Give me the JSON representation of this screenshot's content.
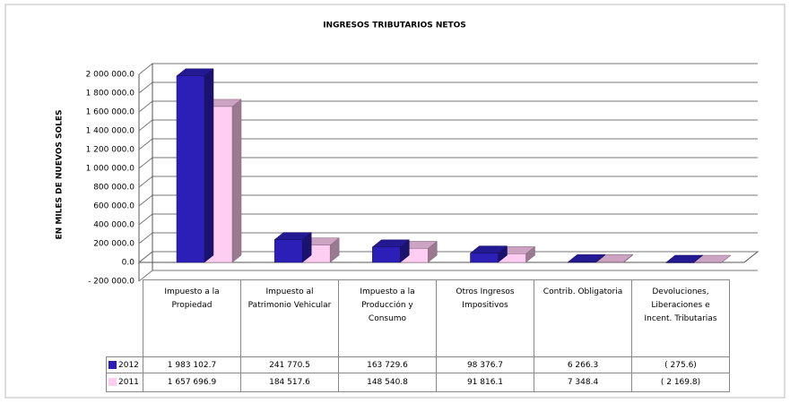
{
  "chart_data": {
    "type": "bar3d",
    "title": "INGRESOS  TRIBUTARIOS  NETOS",
    "y_label": "EN MILES DE NUEVOS SOLES",
    "categories": [
      "Impuesto a la Propiedad",
      "Impuesto al Patrimonio Vehicular",
      "Impuesto a la Producción y Consumo",
      "Otros Ingresos Impositivos",
      "Contrib. Obligatoria",
      "Devoluciones, Liberaciones e Incent. Tributarias"
    ],
    "series": [
      {
        "name": "2012",
        "color": "#2b1fb8",
        "values": [
          1983102.7,
          241770.5,
          163729.6,
          98376.7,
          6266.3,
          -275.6
        ],
        "value_labels": [
          "1 983 102.7",
          "241 770.5",
          "163 729.6",
          "98 376.7",
          "6 266.3",
          "(  275.6)"
        ]
      },
      {
        "name": "2011",
        "color": "#ffccf2",
        "values": [
          1657696.9,
          184517.6,
          148540.8,
          91816.1,
          7348.4,
          -2169.8
        ],
        "value_labels": [
          "1 657 696.9",
          "184 517.6",
          "148 540.8",
          "91 816.1",
          "7 348.4",
          "( 2 169.8)"
        ]
      }
    ],
    "ylim": [
      -200000,
      2000000
    ],
    "yticks": [
      {
        "value": -200000,
        "label": "- 200 000.0"
      },
      {
        "value": 0,
        "label": "0.0"
      },
      {
        "value": 200000,
        "label": "200 000.0"
      },
      {
        "value": 400000,
        "label": "400 000.0"
      },
      {
        "value": 600000,
        "label": "600 000.0"
      },
      {
        "value": 800000,
        "label": "800 000.0"
      },
      {
        "value": 1000000,
        "label": "1 000 000.0"
      },
      {
        "value": 1200000,
        "label": "1 200 000.0"
      },
      {
        "value": 1400000,
        "label": "1 400 000.0"
      },
      {
        "value": 1600000,
        "label": "1 600 000.0"
      },
      {
        "value": 1800000,
        "label": "1 800 000.0"
      },
      {
        "value": 2000000,
        "label": "2 000 000.0"
      }
    ],
    "grid": true
  }
}
